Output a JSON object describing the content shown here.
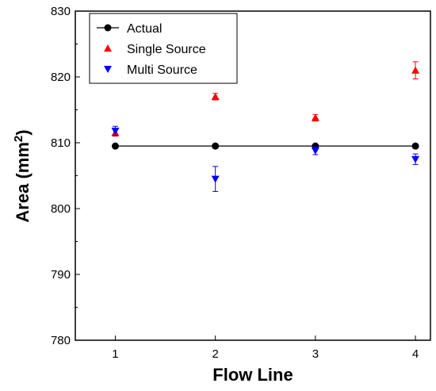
{
  "chart_data": {
    "type": "scatter",
    "x": [
      1,
      2,
      3,
      4
    ],
    "xlabel": "Flow Line",
    "ylabel": {
      "main": "Area (mm",
      "sup": "2",
      "end": ")"
    },
    "xlim": [
      0.6,
      4.15
    ],
    "ylim": [
      780,
      830
    ],
    "xticks": [
      "1",
      "2",
      "3",
      "4"
    ],
    "yticks": [
      "780",
      "790",
      "800",
      "810",
      "820",
      "830"
    ],
    "legend_position": "top-left",
    "series": [
      {
        "name": "Actual",
        "marker": "circle",
        "color": "#000000",
        "line": true,
        "values": [
          809.5,
          809.5,
          809.5,
          809.5
        ],
        "err": [
          0,
          0,
          0,
          0
        ]
      },
      {
        "name": "Single Source",
        "marker": "triangle-up",
        "color": "#ff0000",
        "line": false,
        "values": [
          811.5,
          817.0,
          813.8,
          821.0
        ],
        "err": [
          0.5,
          0.5,
          0.5,
          1.3
        ]
      },
      {
        "name": "Multi Source",
        "marker": "triangle-down",
        "color": "#0000ff",
        "line": false,
        "values": [
          811.8,
          804.5,
          808.8,
          807.5
        ],
        "err": [
          0.7,
          1.9,
          0.6,
          0.8
        ]
      }
    ]
  }
}
